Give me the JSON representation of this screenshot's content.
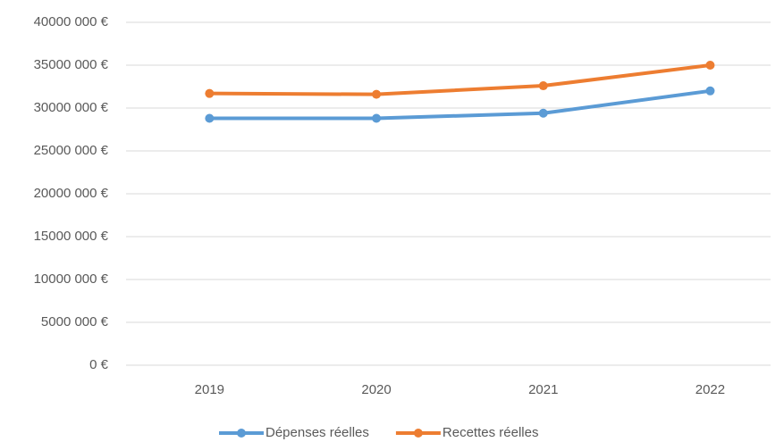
{
  "chart_data": {
    "type": "line",
    "categories": [
      "2019",
      "2020",
      "2021",
      "2022"
    ],
    "series": [
      {
        "name": "Dépenses réelles",
        "color": "#5b9bd5",
        "values": [
          28800000,
          28800000,
          29400000,
          32000000
        ]
      },
      {
        "name": "Recettes réelles",
        "color": "#ed7d31",
        "values": [
          31700000,
          31600000,
          32600000,
          35000000
        ]
      }
    ],
    "ylim": [
      0,
      40000000
    ],
    "yticks": [
      {
        "value": 0,
        "label": "0 €"
      },
      {
        "value": 5000000,
        "label": "5000 000 €"
      },
      {
        "value": 10000000,
        "label": "10000 000 €"
      },
      {
        "value": 15000000,
        "label": "15000 000 €"
      },
      {
        "value": 20000000,
        "label": "20000 000 €"
      },
      {
        "value": 25000000,
        "label": "25000 000 €"
      },
      {
        "value": 30000000,
        "label": "30000 000 €"
      },
      {
        "value": 35000000,
        "label": "35000 000 €"
      },
      {
        "value": 40000000,
        "label": "40000 000 €"
      }
    ],
    "grid": true,
    "legend": "bottom"
  }
}
